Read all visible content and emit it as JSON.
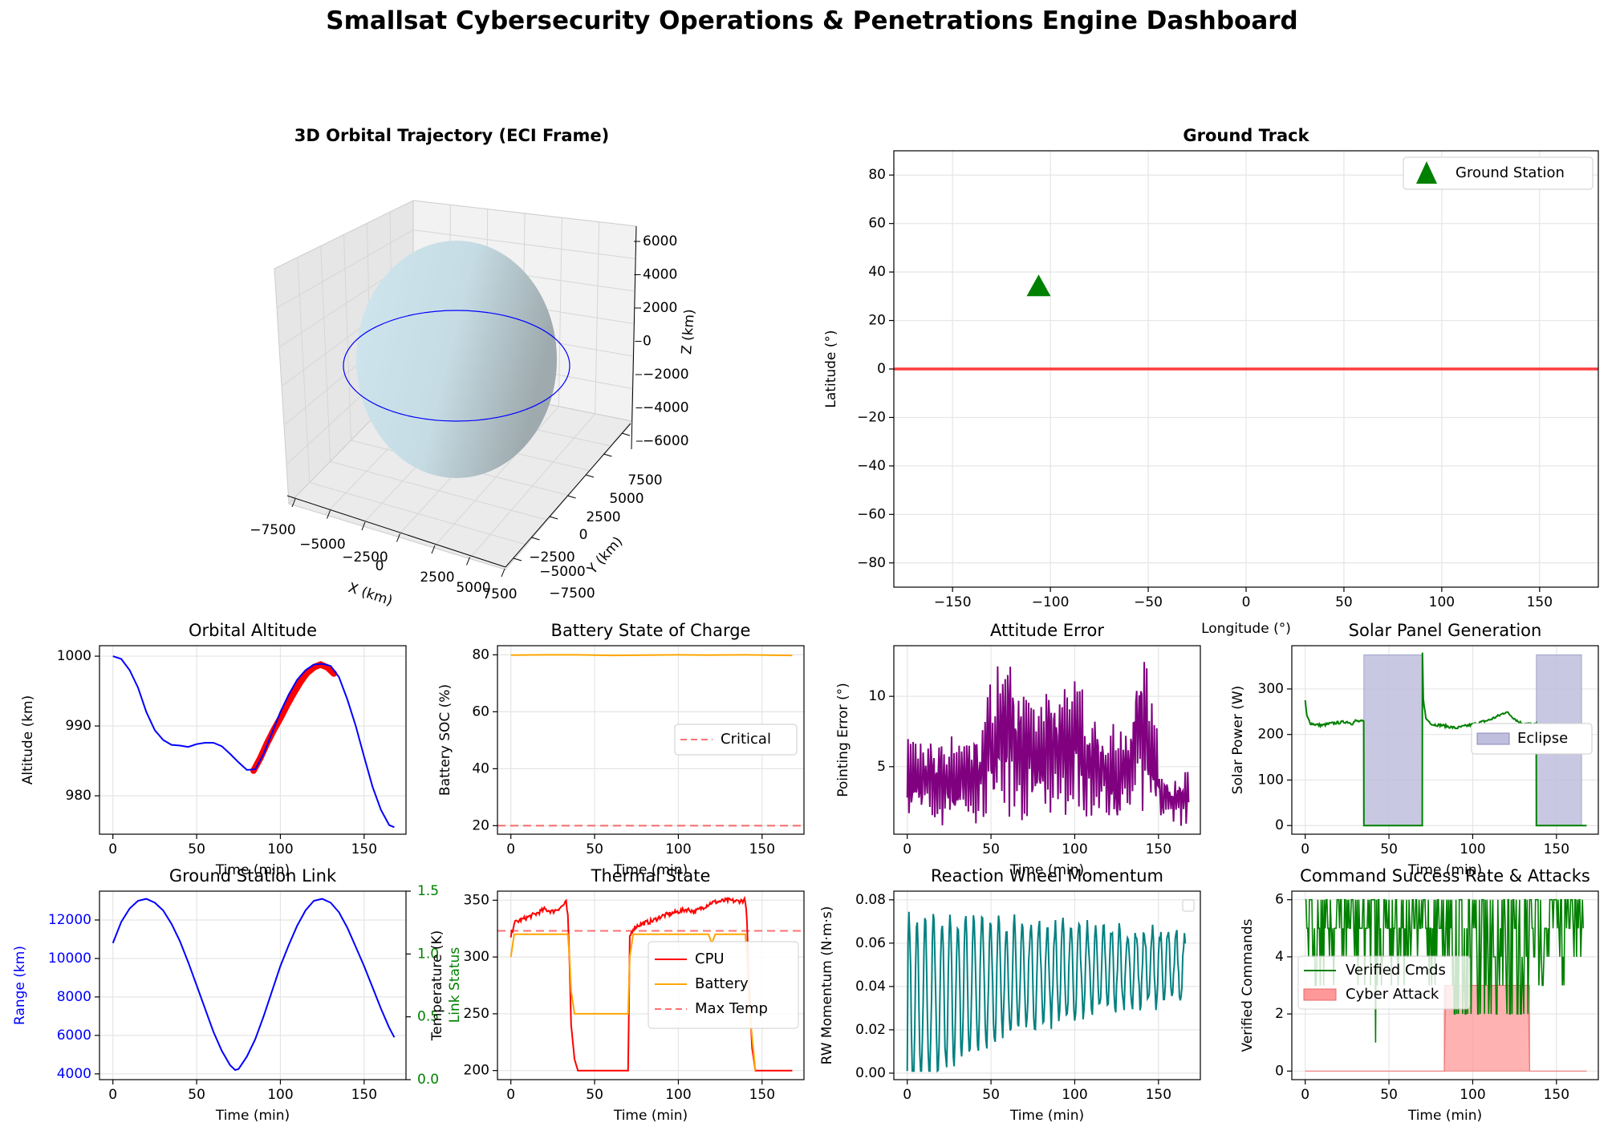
{
  "figure": {
    "title": "Smallsat Cybersecurity Operations & Penetrations Engine Dashboard"
  },
  "colors": {
    "blue": "#0000ff",
    "red": "#ff0000",
    "orange": "#ffa500",
    "purple": "#800080",
    "green": "#008000",
    "teal": "#008080",
    "eclipse": "#bfbfdd",
    "attack": "#ff9999",
    "earth": "#c6dce4",
    "grid": "#e5e5e5"
  },
  "chart_data": [
    {
      "id": "orbit3d",
      "type": "scatter",
      "projection": "3d",
      "title": "3D Orbital Trajectory (ECI Frame)",
      "xlabel": "X (km)",
      "ylabel": "Y (km)",
      "zlabel": "Z (km)",
      "xticks": [
        "−7500",
        "−5000",
        "−2500",
        "0",
        "2500",
        "5000",
        "7500"
      ],
      "yticks": [
        "−7500",
        "−5000",
        "−2500",
        "0",
        "2500",
        "5000",
        "7500"
      ],
      "zticks": [
        "−6000",
        "−4000",
        "−2000",
        "0",
        "2000",
        "4000",
        "6000"
      ],
      "orbit_radius_km": 7350,
      "earth_radius_km": 6371
    },
    {
      "id": "groundtrack",
      "type": "line",
      "title": "Ground Track",
      "xlabel": "Longitude (°)",
      "ylabel": "Latitude (°)",
      "xlim": [
        -180,
        180
      ],
      "ylim": [
        -90,
        90
      ],
      "xticks": [
        -150,
        -100,
        -50,
        0,
        50,
        100,
        150
      ],
      "yticks": [
        -80,
        -60,
        -40,
        -20,
        0,
        20,
        40,
        60,
        80
      ],
      "track": {
        "x": [
          -180,
          180
        ],
        "y": [
          0,
          0
        ]
      },
      "ground_station": {
        "lon": -106,
        "lat": 34
      },
      "legend": [
        "Ground Station"
      ],
      "legend_loc": "upper right",
      "grid": true
    },
    {
      "id": "altitude",
      "type": "line",
      "title": "Orbital Altitude",
      "xlabel": "Time (min)",
      "ylabel": "Altitude (km)",
      "xlim": [
        -8,
        175
      ],
      "ylim": [
        974.5,
        1001.5
      ],
      "xticks": [
        0,
        50,
        100,
        150
      ],
      "yticks": [
        980,
        990,
        1000
      ],
      "x": [
        0,
        5,
        10,
        15,
        20,
        25,
        30,
        35,
        40,
        45,
        50,
        55,
        60,
        65,
        70,
        75,
        80,
        85,
        90,
        95,
        100,
        105,
        110,
        115,
        120,
        125,
        130,
        135,
        140,
        145,
        150,
        155,
        160,
        165,
        168
      ],
      "y": [
        1000,
        999.6,
        998.0,
        995.5,
        992.0,
        989.4,
        988.0,
        987.3,
        987.2,
        987.0,
        987.4,
        987.6,
        987.6,
        987.1,
        986.0,
        984.8,
        983.7,
        983.8,
        986.0,
        989.0,
        992.0,
        994.5,
        996.6,
        998.0,
        998.8,
        998.9,
        998.6,
        997.0,
        993.8,
        990.0,
        985.6,
        981.3,
        978.0,
        975.8,
        975.5
      ],
      "highlight_x": [
        84,
        88,
        92,
        96,
        100,
        104,
        108,
        112,
        116,
        120,
        124,
        128,
        132
      ],
      "highlight_y": [
        983.6,
        985.4,
        987.5,
        989.4,
        991.1,
        993.0,
        994.7,
        996.3,
        997.6,
        998.4,
        998.8,
        998.4,
        997.5
      ],
      "grid": true
    },
    {
      "id": "battery",
      "type": "line",
      "title": "Battery State of Charge",
      "xlabel": "Time (min)",
      "ylabel": "Battery SOC (%)",
      "xlim": [
        -8,
        175
      ],
      "ylim": [
        17.0,
        83.2
      ],
      "xticks": [
        0,
        50,
        100,
        150
      ],
      "yticks": [
        20,
        40,
        60,
        80
      ],
      "x": [
        0,
        20,
        40,
        60,
        80,
        100,
        120,
        140,
        168
      ],
      "y": [
        79.9,
        80.0,
        80.0,
        79.8,
        79.9,
        80.0,
        79.9,
        80.0,
        79.8
      ],
      "critical": 20,
      "legend": [
        "Critical"
      ],
      "legend_loc": "center right",
      "grid": true
    },
    {
      "id": "attitude",
      "type": "line",
      "title": "Attitude Error",
      "xlabel": "Time (min)",
      "ylabel": "Pointing Error (°)",
      "xlim": [
        -8,
        175
      ],
      "ylim": [
        0.2,
        13.6
      ],
      "xticks": [
        0,
        50,
        100,
        150
      ],
      "yticks": [
        5,
        10
      ],
      "color": "#800080",
      "grid": true
    },
    {
      "id": "solar",
      "type": "line",
      "title": "Solar Panel Generation",
      "xlabel": "Time (min)",
      "ylabel": "Solar Power (W)",
      "xlim": [
        -8,
        175
      ],
      "ylim": [
        -19,
        395
      ],
      "xticks": [
        0,
        50,
        100,
        150
      ],
      "yticks": [
        0,
        100,
        200,
        300
      ],
      "x": [
        0,
        1,
        3,
        6,
        10,
        15,
        20,
        25,
        28,
        30,
        33,
        34.9,
        35,
        69.9,
        70,
        70.5,
        72,
        76,
        82,
        90,
        100,
        110,
        116,
        120,
        124,
        128,
        132,
        136,
        137.9,
        138,
        168
      ],
      "y": [
        275,
        240,
        225,
        222,
        220,
        224,
        226,
        228,
        224,
        230,
        228,
        229,
        0,
        0,
        378,
        280,
        235,
        222,
        220,
        214,
        222,
        232,
        242,
        250,
        238,
        226,
        224,
        222,
        222,
        0,
        0
      ],
      "eclipse": [
        [
          35,
          70
        ],
        [
          138,
          165
        ]
      ],
      "eclipse_top": 375,
      "legend": [
        "Eclipse"
      ],
      "legend_loc": "center right",
      "grid": true
    },
    {
      "id": "link",
      "type": "line",
      "title": "Ground Station Link",
      "xlabel": "Time (min)",
      "ylabel": "Range (km)",
      "y2label": "Link Status",
      "xlim": [
        -8,
        175
      ],
      "ylim": [
        3700,
        13500
      ],
      "y2lim": [
        0.0,
        1.5
      ],
      "xticks": [
        0,
        50,
        100,
        150
      ],
      "yticks": [
        4000,
        6000,
        8000,
        10000,
        12000
      ],
      "y2ticks": [
        "0.0",
        "0.5",
        "1.0",
        "1.5"
      ],
      "x": [
        0,
        5,
        10,
        15,
        20,
        25,
        30,
        35,
        40,
        45,
        50,
        55,
        60,
        65,
        70,
        73,
        75,
        80,
        85,
        90,
        95,
        100,
        105,
        110,
        115,
        120,
        125,
        130,
        135,
        140,
        145,
        150,
        155,
        160,
        165,
        168
      ],
      "y": [
        10800,
        11900,
        12600,
        13000,
        13100,
        12900,
        12500,
        11800,
        10900,
        9800,
        8600,
        7400,
        6200,
        5200,
        4450,
        4200,
        4250,
        4900,
        5800,
        7000,
        8300,
        9600,
        10700,
        11700,
        12500,
        13000,
        13100,
        12900,
        12400,
        11600,
        10600,
        9600,
        8500,
        7400,
        6400,
        5900
      ],
      "grid": true
    },
    {
      "id": "thermal",
      "type": "line",
      "title": "Thermal State",
      "xlabel": "Time (min)",
      "ylabel": "Temperature (K)",
      "xlim": [
        -8,
        175
      ],
      "ylim": [
        192,
        358
      ],
      "xticks": [
        0,
        50,
        100,
        150
      ],
      "yticks": [
        200,
        250,
        300,
        350
      ],
      "series": [
        {
          "name": "CPU",
          "color": "#ff0000",
          "x": [
            0,
            2,
            5,
            10,
            15,
            20,
            25,
            30,
            33,
            34,
            35,
            36,
            38,
            40,
            70,
            71,
            73,
            76,
            80,
            85,
            90,
            95,
            100,
            105,
            110,
            115,
            120,
            125,
            130,
            135,
            140,
            141,
            142,
            144,
            146,
            168
          ],
          "y": [
            318,
            330,
            332,
            335,
            338,
            342,
            340,
            344,
            348,
            336,
            295,
            240,
            210,
            200,
            200,
            318,
            325,
            328,
            330,
            332,
            336,
            338,
            340,
            342,
            340,
            344,
            348,
            349,
            350,
            349,
            350,
            330,
            280,
            220,
            200,
            200
          ]
        },
        {
          "name": "Battery",
          "color": "#ffa500",
          "x": [
            0,
            2,
            5,
            34,
            35,
            36,
            38,
            70,
            71,
            73,
            118,
            120,
            122,
            140,
            141,
            142,
            144,
            146
          ],
          "y": [
            300,
            320,
            320,
            320,
            300,
            270,
            250,
            250,
            300,
            320,
            320,
            312,
            320,
            320,
            300,
            260,
            230,
            200
          ]
        }
      ],
      "max_temp": 323,
      "legend": [
        "CPU",
        "Battery",
        "Max Temp"
      ],
      "legend_loc": "center right",
      "grid": true
    },
    {
      "id": "wheel",
      "type": "line",
      "title": "Reaction Wheel Momentum",
      "xlabel": "Time (min)",
      "ylabel": "RW Momentum (N·m·s)",
      "xlim": [
        -8,
        175
      ],
      "ylim": [
        -0.003,
        0.084
      ],
      "xticks": [
        0,
        50,
        100,
        150
      ],
      "yticks": [
        "0.00",
        "0.02",
        "0.04",
        "0.06",
        "0.08"
      ],
      "color": "#008080",
      "grid": true
    },
    {
      "id": "commands",
      "type": "line",
      "title": "Command Success Rate & Attacks",
      "xlabel": "Time (min)",
      "ylabel": "Verified Commands",
      "xlim": [
        -8,
        175
      ],
      "ylim": [
        -0.3,
        6.3
      ],
      "xticks": [
        0,
        50,
        100,
        150
      ],
      "yticks": [
        0,
        2,
        4,
        6
      ],
      "attack_x": [
        0,
        83,
        84,
        133,
        134,
        168
      ],
      "attack_y": [
        0,
        0,
        3,
        3,
        0,
        0
      ],
      "legend": [
        "Verified Cmds",
        "Cyber Attack"
      ],
      "legend_loc": "center left",
      "grid": true
    }
  ]
}
